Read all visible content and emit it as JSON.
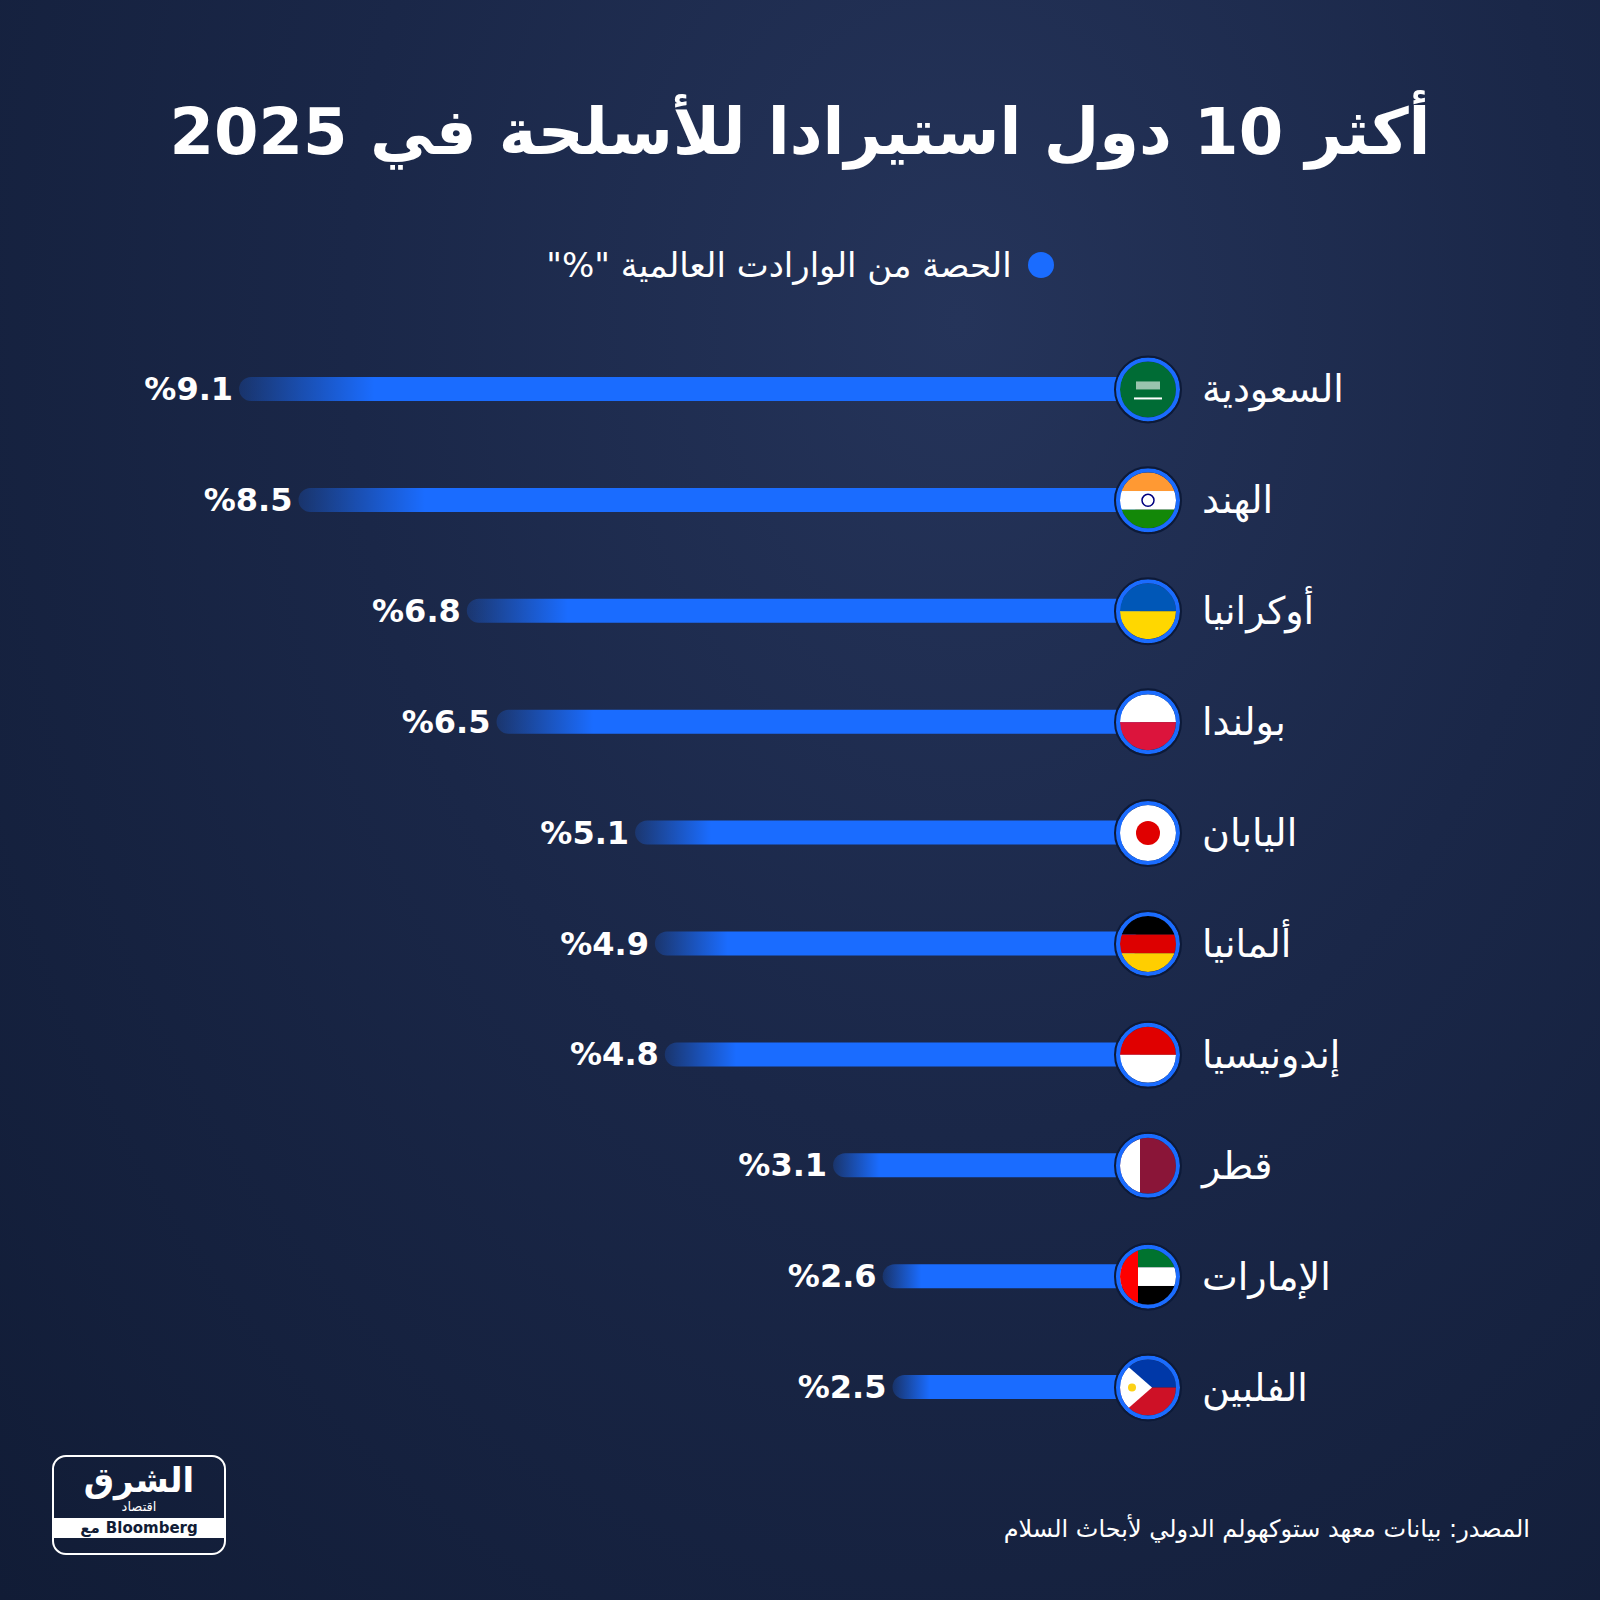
{
  "chart_data": {
    "type": "bar",
    "title": "أكثر 10 دول استيرادا للأسلحة في 2025",
    "categories": [
      "السعودية",
      "الهند",
      "أوكرانيا",
      "بولندا",
      "اليابان",
      "ألمانيا",
      "إندونيسيا",
      "قطر",
      "الإمارات",
      "الفلبين"
    ],
    "series": [
      {
        "name": "الحصة من الوارادت العالمية \"%\"",
        "color": "#1a6cff",
        "values": [
          9.1,
          8.5,
          6.8,
          6.5,
          5.1,
          4.9,
          4.8,
          3.1,
          2.6,
          2.5
        ],
        "value_labels": [
          "%9.1",
          "%8.5",
          "%6.8",
          "%6.5",
          "%5.1",
          "%4.9",
          "%4.8",
          "%3.1",
          "%2.6",
          "%2.5"
        ]
      }
    ],
    "xlim": [
      0,
      10
    ],
    "orientation": "horizontal",
    "data_labels": true,
    "tick_labels": "y",
    "legend": "top",
    "grid": false,
    "source": "المصدر: بيانات معهد ستوكهولم الدولي لأبحاث السلام",
    "logo": [
      "الشرق",
      "اقتصاد",
      "مع",
      "Bloomberg"
    ]
  }
}
